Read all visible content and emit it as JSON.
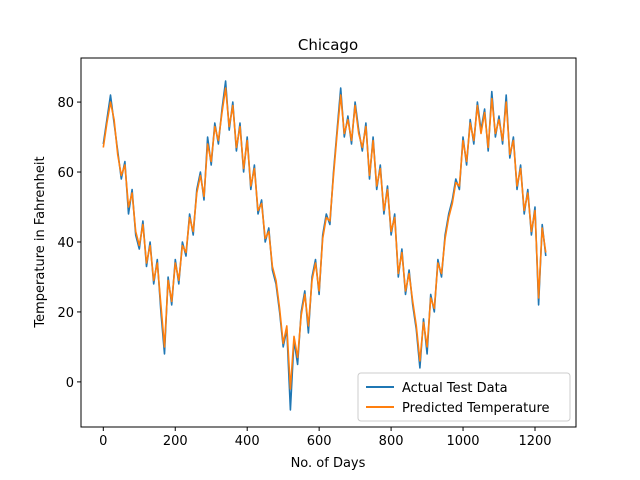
{
  "chart_data": {
    "type": "line",
    "title": "Chicago",
    "x_label": "No. of Days",
    "y_label": "Temperature in Fahrenheit",
    "x": [
      0,
      10,
      20,
      30,
      40,
      50,
      60,
      70,
      80,
      90,
      100,
      110,
      120,
      130,
      140,
      150,
      160,
      170,
      180,
      190,
      200,
      210,
      220,
      230,
      240,
      250,
      260,
      270,
      280,
      290,
      300,
      310,
      320,
      330,
      340,
      350,
      360,
      370,
      380,
      390,
      400,
      410,
      420,
      430,
      440,
      450,
      460,
      470,
      480,
      490,
      500,
      510,
      520,
      530,
      540,
      550,
      560,
      570,
      580,
      590,
      600,
      610,
      620,
      630,
      640,
      650,
      660,
      670,
      680,
      690,
      700,
      710,
      720,
      730,
      740,
      750,
      760,
      770,
      780,
      790,
      800,
      810,
      820,
      830,
      840,
      850,
      860,
      870,
      880,
      890,
      900,
      910,
      920,
      930,
      940,
      950,
      960,
      970,
      980,
      990,
      1000,
      1010,
      1020,
      1030,
      1040,
      1050,
      1060,
      1070,
      1080,
      1090,
      1100,
      1110,
      1120,
      1130,
      1140,
      1150,
      1160,
      1170,
      1180,
      1190,
      1200,
      1210,
      1220,
      1230
    ],
    "series": [
      {
        "name": "Actual Test Data",
        "color": "#1f77b4",
        "values": [
          68,
          75,
          82,
          74,
          66,
          58,
          63,
          48,
          55,
          42,
          38,
          46,
          33,
          40,
          28,
          35,
          20,
          8,
          30,
          22,
          35,
          28,
          40,
          36,
          48,
          42,
          55,
          60,
          52,
          70,
          62,
          74,
          68,
          78,
          86,
          72,
          80,
          66,
          74,
          60,
          70,
          55,
          62,
          48,
          52,
          40,
          44,
          32,
          28,
          20,
          10,
          15,
          -8,
          12,
          5,
          20,
          26,
          14,
          30,
          35,
          25,
          42,
          48,
          45,
          60,
          72,
          84,
          70,
          76,
          68,
          80,
          72,
          66,
          74,
          58,
          70,
          55,
          62,
          48,
          56,
          42,
          48,
          30,
          38,
          25,
          32,
          22,
          15,
          4,
          18,
          8,
          25,
          20,
          35,
          30,
          42,
          48,
          52,
          58,
          55,
          70,
          62,
          75,
          68,
          80,
          72,
          78,
          66,
          83,
          70,
          76,
          68,
          82,
          64,
          70,
          55,
          62,
          48,
          55,
          42,
          50,
          22,
          45,
          36
        ]
      },
      {
        "name": "Predicted Temperature",
        "color": "#ff7f0e",
        "values": [
          67,
          74,
          80,
          75,
          65,
          59,
          62,
          50,
          54,
          43,
          39,
          45,
          34,
          39,
          29,
          34,
          22,
          10,
          29,
          23,
          34,
          29,
          39,
          37,
          47,
          43,
          54,
          59,
          53,
          68,
          63,
          73,
          69,
          77,
          84,
          73,
          79,
          67,
          73,
          61,
          69,
          56,
          61,
          49,
          51,
          41,
          43,
          33,
          29,
          21,
          11,
          16,
          -2,
          13,
          7,
          19,
          25,
          16,
          29,
          34,
          26,
          41,
          47,
          46,
          59,
          71,
          82,
          71,
          75,
          69,
          79,
          71,
          67,
          73,
          59,
          69,
          56,
          61,
          49,
          55,
          43,
          47,
          31,
          37,
          26,
          31,
          23,
          16,
          6,
          17,
          10,
          24,
          21,
          34,
          31,
          41,
          47,
          51,
          57,
          56,
          69,
          63,
          74,
          69,
          79,
          71,
          77,
          67,
          81,
          71,
          75,
          69,
          80,
          65,
          69,
          56,
          61,
          49,
          54,
          43,
          49,
          24,
          44,
          37
        ]
      }
    ],
    "xlim": [
      -62,
      1314
    ],
    "ylim": [
      -12.9,
      92.6
    ],
    "xticks": [
      0,
      200,
      400,
      600,
      800,
      1000,
      1200
    ],
    "yticks": [
      0,
      20,
      40,
      60,
      80
    ],
    "legend": "lower right"
  }
}
